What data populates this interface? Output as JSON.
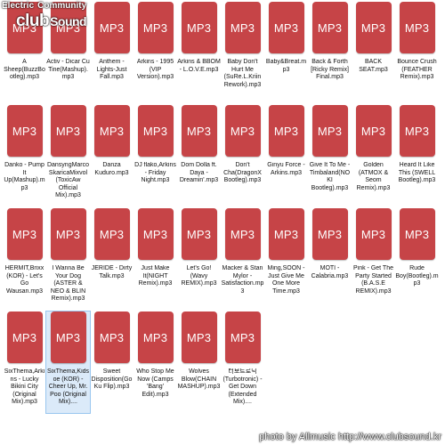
{
  "watermark": {
    "top": "Electric",
    "top_sub": "Community",
    "main": "club",
    "main_sound": "Sound"
  },
  "icon_label": "MP3",
  "colors": {
    "icon_red": "#c64447",
    "selection": "#dbeaf9"
  },
  "files": [
    {
      "name": "A Sheep(BuzzBootleg).mp3"
    },
    {
      "name": "Activ - Dicar Cu Tine(Mashup).mp3"
    },
    {
      "name": "Anthem - Lights-Just Fall.mp3"
    },
    {
      "name": "Arkins - 1995 (VIP Version).mp3"
    },
    {
      "name": "Arkins & BBOM - L.O.V.E.mp3"
    },
    {
      "name": "Baby Don't Hurt Me (SuRe.L.Kriin Rework).mp3"
    },
    {
      "name": "Baby&Breat.mp3"
    },
    {
      "name": "Back & Forth [Ricky Remix] Final.mp3"
    },
    {
      "name": "BACK SEAT.mp3"
    },
    {
      "name": "Bounce Crush (FEATHER Remix).mp3"
    },
    {
      "name": "Danko - Pump It Up(Mashup).mp3"
    },
    {
      "name": "DansyngMarcoSkaricaMixvol (ToxicAw Official Mix).mp3"
    },
    {
      "name": "Danza Kuduro.mp3"
    },
    {
      "name": "DJ flako,Arkins - Friday Night.mp3"
    },
    {
      "name": "Dom Dolla ft. Daya - Dreamin'.mp3"
    },
    {
      "name": "Don't Cha(DragonX Bootleg).mp3"
    },
    {
      "name": "Ginyu Force - Arkins.mp3"
    },
    {
      "name": "Give It To Me - Timbaland(NOKI Bootleg).mp3"
    },
    {
      "name": "Golden (ATMOX & Seom Remix).mp3"
    },
    {
      "name": "Heard It Like This (SWELL Bootleg).mp3"
    },
    {
      "name": "HERMIT,Brixx (KOR) - Let's Go Wausan.mp3"
    },
    {
      "name": "I Wanna Be Your Dog (ASTER & NEO & BLIN Remix).mp3"
    },
    {
      "name": "JERIDE - Dirty Talk.mp3"
    },
    {
      "name": "Just Make It(NIGHT Remix).mp3"
    },
    {
      "name": "Let's Go! (Wavy REMIX).mp3"
    },
    {
      "name": "Macker & Stan Mylor - Satisfaction.mp3"
    },
    {
      "name": "Ming,SOON - Just Give Me One More Time.mp3"
    },
    {
      "name": "MOTI - Calabria.mp3"
    },
    {
      "name": "Pink - Get The Party Started (B.A.S.E REMIX).mp3"
    },
    {
      "name": "Rude Boy(Bootleg).mp3"
    },
    {
      "name": "SixThema,Arkins - Lucky Bikini City (Original Mix).mp3"
    },
    {
      "name": "SixThema,Kidsoe (KOR) - Cheer Up, Mr. Poo (Original Mix)....",
      "selected": true
    },
    {
      "name": "Sweet Disposition(GoKu Flip).mp3"
    },
    {
      "name": "Who Stop Me Now (Camps 'Bang' Edit).mp3"
    },
    {
      "name": "Wolves Blow(CHAIN MASHUP).mp3"
    },
    {
      "name": "터보트로닉 (Turbotronic) - Get Down (Extended Mix)...."
    }
  ],
  "credit": "photo by Allmusic http://www.clubsound.kr"
}
